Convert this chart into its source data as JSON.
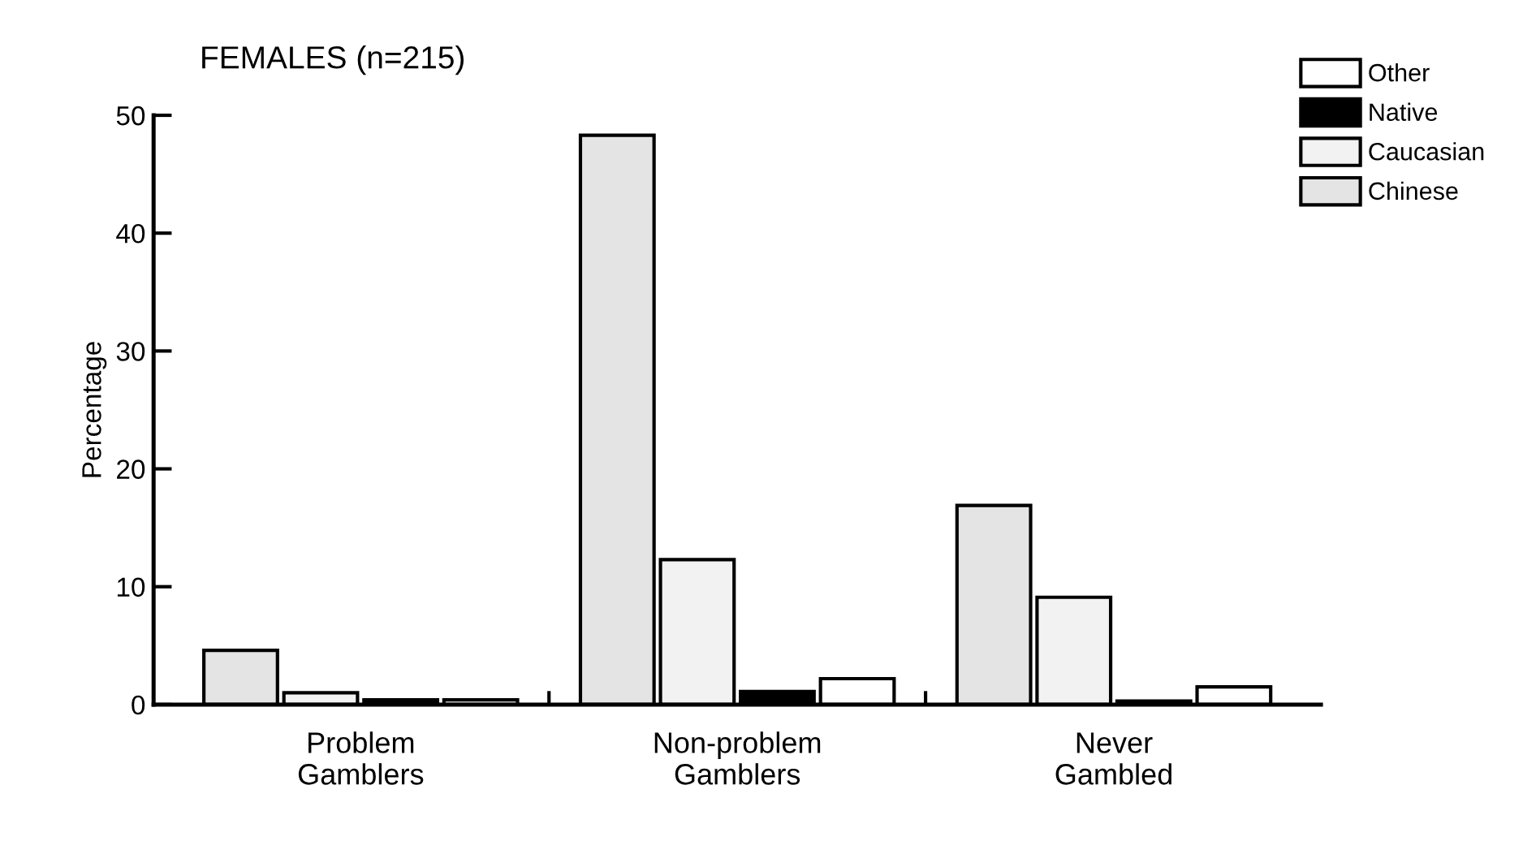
{
  "chart_data": {
    "type": "bar",
    "title": "FEMALES (n=215)",
    "ylabel": "Percentage",
    "categories": [
      "Problem\nGamblers",
      "Non-problem\nGamblers",
      "Never\nGambled"
    ],
    "series": [
      {
        "name": "Chinese",
        "color": "#e4e4e4",
        "values": [
          4.6,
          48.3,
          16.9
        ]
      },
      {
        "name": "Caucasian",
        "color": "#f2f2f2",
        "values": [
          1.0,
          12.3,
          9.1
        ]
      },
      {
        "name": "Native",
        "color": "#000000",
        "values": [
          0.4,
          1.1,
          0.3
        ]
      },
      {
        "name": "Other",
        "color": "#ffffff",
        "values": [
          0.4,
          2.2,
          1.5
        ]
      }
    ],
    "ylim": [
      0,
      50
    ],
    "yticks": [
      0,
      10,
      20,
      30,
      40,
      50
    ],
    "grid": false,
    "legend": "top right"
  }
}
